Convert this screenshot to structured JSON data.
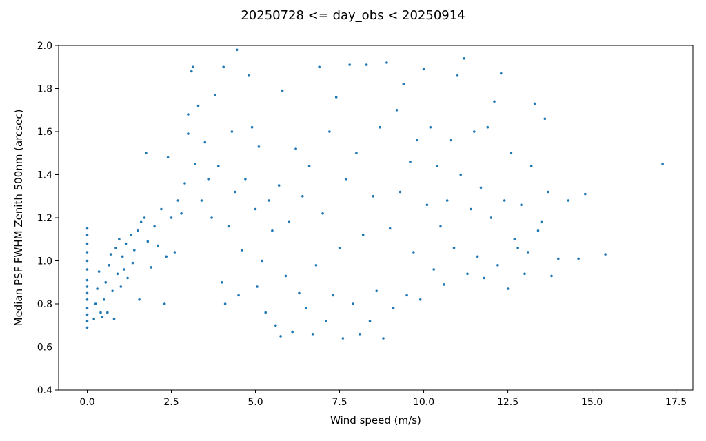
{
  "chart_data": {
    "type": "scatter",
    "title": "20250728 <= day_obs < 20250914",
    "xlabel": "Wind speed (m/s)",
    "ylabel": "Median PSF FWHM Zenith 500nm (arcsec)",
    "xlim": [
      -0.85,
      18.0
    ],
    "ylim": [
      0.4,
      2.0
    ],
    "xticks": [
      "0.0",
      "2.5",
      "5.0",
      "7.5",
      "10.0",
      "12.5",
      "15.0",
      "17.5"
    ],
    "yticks": [
      "0.4",
      "0.6",
      "0.8",
      "1.0",
      "1.2",
      "1.4",
      "1.6",
      "1.8",
      "2.0"
    ],
    "grid": false,
    "marker_color": "#1f77b4",
    "points_note": "representative sample of the visible point cloud",
    "series": [
      {
        "values": [
          [
            0.0,
            0.69
          ],
          [
            0.0,
            0.72
          ],
          [
            0.0,
            0.75
          ],
          [
            0.0,
            0.78
          ],
          [
            0.0,
            0.82
          ],
          [
            0.0,
            0.85
          ],
          [
            0.0,
            0.88
          ],
          [
            0.0,
            0.91
          ],
          [
            0.0,
            0.96
          ],
          [
            0.0,
            1.0
          ],
          [
            0.0,
            1.04
          ],
          [
            0.0,
            1.08
          ],
          [
            0.0,
            1.12
          ],
          [
            0.0,
            1.15
          ],
          [
            0.2,
            0.73
          ],
          [
            0.25,
            0.8
          ],
          [
            0.3,
            0.87
          ],
          [
            0.35,
            0.95
          ],
          [
            0.4,
            0.76
          ],
          [
            0.45,
            0.74
          ],
          [
            0.5,
            0.82
          ],
          [
            0.55,
            0.9
          ],
          [
            0.6,
            0.76
          ],
          [
            0.65,
            0.98
          ],
          [
            0.7,
            1.03
          ],
          [
            0.75,
            0.86
          ],
          [
            0.8,
            0.73
          ],
          [
            0.85,
            1.06
          ],
          [
            0.9,
            0.94
          ],
          [
            0.95,
            1.1
          ],
          [
            1.0,
            0.88
          ],
          [
            1.05,
            1.02
          ],
          [
            1.1,
            0.96
          ],
          [
            1.15,
            1.08
          ],
          [
            1.2,
            0.92
          ],
          [
            1.3,
            1.12
          ],
          [
            1.35,
            0.99
          ],
          [
            1.4,
            1.05
          ],
          [
            1.5,
            1.14
          ],
          [
            1.55,
            0.82
          ],
          [
            1.6,
            1.18
          ],
          [
            1.7,
            1.2
          ],
          [
            1.75,
            1.5
          ],
          [
            1.8,
            1.09
          ],
          [
            1.9,
            0.97
          ],
          [
            2.0,
            1.16
          ],
          [
            2.1,
            1.07
          ],
          [
            2.2,
            1.24
          ],
          [
            2.3,
            0.8
          ],
          [
            2.35,
            1.02
          ],
          [
            2.4,
            1.48
          ],
          [
            2.5,
            1.2
          ],
          [
            2.6,
            1.04
          ],
          [
            2.7,
            1.28
          ],
          [
            2.8,
            1.22
          ],
          [
            2.9,
            1.36
          ],
          [
            3.0,
            1.68
          ],
          [
            3.0,
            1.59
          ],
          [
            3.1,
            1.88
          ],
          [
            3.15,
            1.9
          ],
          [
            3.2,
            1.45
          ],
          [
            3.3,
            1.72
          ],
          [
            3.4,
            1.28
          ],
          [
            3.5,
            1.55
          ],
          [
            3.6,
            1.38
          ],
          [
            3.7,
            1.2
          ],
          [
            3.8,
            1.77
          ],
          [
            3.9,
            1.44
          ],
          [
            4.0,
            0.9
          ],
          [
            4.05,
            1.9
          ],
          [
            4.1,
            0.8
          ],
          [
            4.2,
            1.16
          ],
          [
            4.3,
            1.6
          ],
          [
            4.4,
            1.32
          ],
          [
            4.45,
            1.98
          ],
          [
            4.5,
            0.84
          ],
          [
            4.6,
            1.05
          ],
          [
            4.7,
            1.38
          ],
          [
            4.8,
            1.86
          ],
          [
            4.9,
            1.62
          ],
          [
            5.0,
            1.24
          ],
          [
            5.05,
            0.88
          ],
          [
            5.1,
            1.53
          ],
          [
            5.2,
            1.0
          ],
          [
            5.3,
            0.76
          ],
          [
            5.4,
            1.28
          ],
          [
            5.5,
            1.14
          ],
          [
            5.6,
            0.7
          ],
          [
            5.7,
            1.35
          ],
          [
            5.75,
            0.65
          ],
          [
            5.8,
            1.79
          ],
          [
            5.9,
            0.93
          ],
          [
            6.0,
            1.18
          ],
          [
            6.1,
            0.67
          ],
          [
            6.2,
            1.52
          ],
          [
            6.3,
            0.85
          ],
          [
            6.4,
            1.3
          ],
          [
            6.5,
            0.78
          ],
          [
            6.6,
            1.44
          ],
          [
            6.7,
            0.66
          ],
          [
            6.8,
            0.98
          ],
          [
            6.9,
            1.9
          ],
          [
            7.0,
            1.22
          ],
          [
            7.1,
            0.72
          ],
          [
            7.2,
            1.6
          ],
          [
            7.3,
            0.84
          ],
          [
            7.4,
            1.76
          ],
          [
            7.5,
            1.06
          ],
          [
            7.6,
            0.64
          ],
          [
            7.7,
            1.38
          ],
          [
            7.8,
            1.91
          ],
          [
            7.9,
            0.8
          ],
          [
            8.0,
            1.5
          ],
          [
            8.1,
            0.66
          ],
          [
            8.2,
            1.12
          ],
          [
            8.3,
            1.91
          ],
          [
            8.4,
            0.72
          ],
          [
            8.5,
            1.3
          ],
          [
            8.6,
            0.86
          ],
          [
            8.7,
            1.62
          ],
          [
            8.8,
            0.64
          ],
          [
            8.9,
            1.92
          ],
          [
            9.0,
            1.15
          ],
          [
            9.1,
            0.78
          ],
          [
            9.2,
            1.7
          ],
          [
            9.3,
            1.32
          ],
          [
            9.4,
            1.82
          ],
          [
            9.5,
            0.84
          ],
          [
            9.6,
            1.46
          ],
          [
            9.7,
            1.04
          ],
          [
            9.8,
            1.56
          ],
          [
            9.9,
            0.82
          ],
          [
            10.0,
            1.89
          ],
          [
            10.1,
            1.26
          ],
          [
            10.2,
            1.62
          ],
          [
            10.3,
            0.96
          ],
          [
            10.4,
            1.44
          ],
          [
            10.5,
            1.16
          ],
          [
            10.6,
            0.89
          ],
          [
            10.7,
            1.28
          ],
          [
            10.8,
            1.56
          ],
          [
            10.9,
            1.06
          ],
          [
            11.0,
            1.86
          ],
          [
            11.1,
            1.4
          ],
          [
            11.2,
            1.94
          ],
          [
            11.3,
            0.94
          ],
          [
            11.4,
            1.24
          ],
          [
            11.5,
            1.6
          ],
          [
            11.6,
            1.02
          ],
          [
            11.7,
            1.34
          ],
          [
            11.8,
            0.92
          ],
          [
            11.9,
            1.62
          ],
          [
            12.0,
            1.2
          ],
          [
            12.1,
            1.74
          ],
          [
            12.2,
            0.98
          ],
          [
            12.3,
            1.87
          ],
          [
            12.4,
            1.28
          ],
          [
            12.5,
            0.87
          ],
          [
            12.6,
            1.5
          ],
          [
            12.7,
            1.1
          ],
          [
            12.8,
            1.06
          ],
          [
            12.9,
            1.26
          ],
          [
            13.0,
            0.94
          ],
          [
            13.1,
            1.04
          ],
          [
            13.2,
            1.44
          ],
          [
            13.3,
            1.73
          ],
          [
            13.4,
            1.14
          ],
          [
            13.5,
            1.18
          ],
          [
            13.6,
            1.66
          ],
          [
            13.7,
            1.32
          ],
          [
            13.8,
            0.93
          ],
          [
            14.0,
            1.01
          ],
          [
            14.3,
            1.28
          ],
          [
            14.6,
            1.01
          ],
          [
            14.8,
            1.31
          ],
          [
            15.4,
            1.03
          ],
          [
            17.1,
            1.45
          ]
        ]
      }
    ]
  }
}
